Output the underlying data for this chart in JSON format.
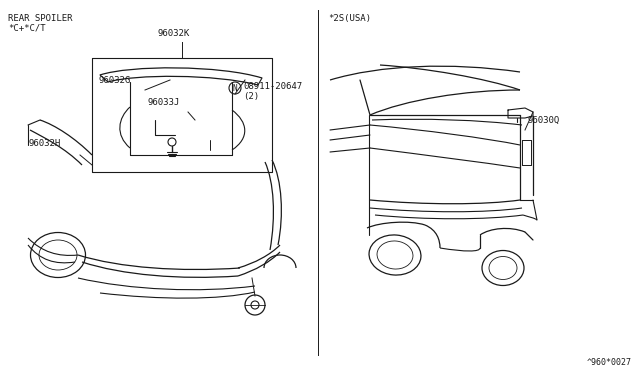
{
  "bg_color": "#ffffff",
  "line_color": "#1a1a1a",
  "title_left_line1": "REAR SPOILER",
  "title_left_line2": "*C+*C/T",
  "title_right": "*2S(USA)",
  "footer": "^960*0027",
  "font_size": 6.5,
  "label_96032K": "96032K",
  "label_96032G": "96032G",
  "label_96032H": "96032H",
  "label_96033J": "96033J",
  "label_N": "N",
  "label_08911": "08911-20647",
  "label_2": "(2)",
  "label_96030Q": "96030Q"
}
